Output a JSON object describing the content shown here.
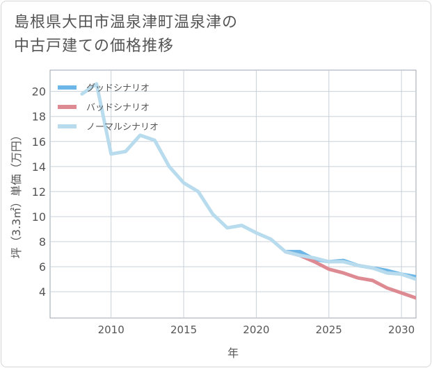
{
  "title_lines": [
    "島根県大田市温泉津町温泉津の",
    "中古戸建ての価格推移"
  ],
  "chart_data": {
    "type": "line",
    "title": "島根県大田市温泉津町温泉津の中古戸建ての価格推移",
    "xlabel": "年",
    "ylabel": "坪（3.3㎡）単価（万円）",
    "xlim": [
      2005.8,
      2031
    ],
    "ylim": [
      1.9,
      21.7
    ],
    "xticks": [
      2010,
      2015,
      2020,
      2025,
      2030
    ],
    "yticks": [
      4,
      6,
      8,
      10,
      12,
      14,
      16,
      18,
      20
    ],
    "grid": true,
    "legend_position": "top-left",
    "series": [
      {
        "name": "グッドシナリオ",
        "color": "#6cb6e8",
        "x": [
          2022,
          2023,
          2024,
          2025,
          2026,
          2027,
          2028,
          2029,
          2030,
          2031
        ],
        "values": [
          7.2,
          7.2,
          6.6,
          6.4,
          6.5,
          6.1,
          5.9,
          5.7,
          5.4,
          5.2
        ]
      },
      {
        "name": "バッドシナリオ",
        "color": "#de8a92",
        "x": [
          2022,
          2023,
          2024,
          2025,
          2026,
          2027,
          2028,
          2029,
          2030,
          2031
        ],
        "values": [
          7.2,
          6.9,
          6.4,
          5.8,
          5.5,
          5.1,
          4.9,
          4.3,
          3.9,
          3.5
        ]
      },
      {
        "name": "ノーマルシナリオ",
        "color": "#b8dcee",
        "x": [
          2008,
          2009,
          2010,
          2011,
          2012,
          2013,
          2014,
          2015,
          2016,
          2017,
          2018,
          2019,
          2020,
          2021,
          2022,
          2023,
          2024,
          2025,
          2026,
          2027,
          2028,
          2029,
          2030,
          2031
        ],
        "values": [
          19.8,
          20.6,
          15.0,
          15.2,
          16.5,
          16.1,
          14.0,
          12.7,
          12.0,
          10.2,
          9.1,
          9.3,
          8.7,
          8.2,
          7.2,
          6.9,
          6.7,
          6.4,
          6.4,
          6.1,
          5.9,
          5.5,
          5.4,
          5.0
        ]
      }
    ]
  }
}
